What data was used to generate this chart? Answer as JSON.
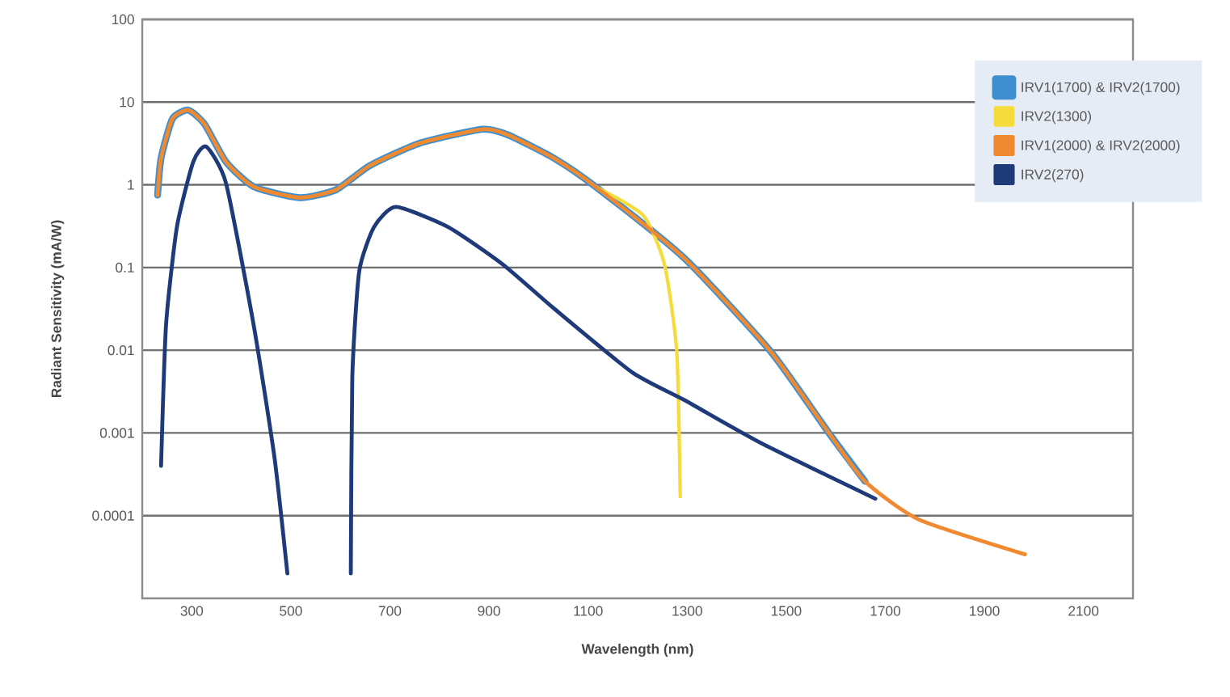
{
  "chart_data": {
    "type": "line",
    "xlabel": "Wavelength (nm)",
    "ylabel": "Radiant Sensitivity (mA/W)",
    "xlim": [
      200,
      2200
    ],
    "xticks": [
      300,
      500,
      700,
      900,
      1100,
      1300,
      1500,
      1700,
      1900,
      2100
    ],
    "ylim": [
      1e-05,
      100
    ],
    "yticks": [
      0.0001,
      0.001,
      0.01,
      0.1,
      1,
      10,
      100
    ],
    "log": "y",
    "grid": "y",
    "legend": "top right",
    "marker": "none",
    "line_style": "solid",
    "series": [
      {
        "name": "IRV1(1700) & IRV2(1700)",
        "color": "#3f8fd0",
        "x": [
          231,
          238,
          261,
          293,
          326,
          369,
          425,
          518,
          591,
          659,
          761,
          887,
          939,
          1031,
          1115,
          1294,
          1469,
          1586,
          1659
        ],
        "values": [
          0.75,
          2.1,
          6.3,
          8,
          5.4,
          1.9,
          0.95,
          0.7,
          0.87,
          1.7,
          3.2,
          4.7,
          4.0,
          2.1,
          0.95,
          0.13,
          0.0096,
          0.001,
          0.00026
        ]
      },
      {
        "name": "IRV2(1300)",
        "color": "#f5dc3c",
        "x": [
          1115,
          1211,
          1254,
          1279,
          1286
        ],
        "values": [
          0.95,
          0.43,
          0.11,
          0.0096,
          0.00017
        ]
      },
      {
        "name": "IRV1(2000) & IRV2(2000)",
        "color": "#f08a30",
        "x": [
          231,
          238,
          261,
          293,
          326,
          369,
          425,
          518,
          591,
          659,
          761,
          887,
          939,
          1031,
          1115,
          1294,
          1469,
          1586,
          1659,
          1767,
          1982
        ],
        "values": [
          0.75,
          2.1,
          6.3,
          8,
          5.4,
          1.9,
          0.95,
          0.7,
          0.87,
          1.7,
          3.2,
          4.7,
          4.0,
          2.1,
          0.95,
          0.13,
          0.0096,
          0.001,
          0.00026,
          9e-05,
          3.4e-05
        ]
      },
      {
        "name": "IRV2(270)",
        "color": "#1f3a78",
        "x": [
          238,
          248,
          270,
          303,
          329,
          369,
          425,
          467,
          493,
          560,
          621,
          624,
          638,
          668,
          712,
          817,
          927,
          1031,
          1189,
          1294,
          1448,
          1680
        ],
        "values": [
          0.0004,
          0.02,
          0.31,
          1.9,
          2.9,
          1.05,
          0.02,
          0.0005,
          2e-05,
          null,
          2e-05,
          0.0047,
          0.09,
          0.31,
          0.54,
          0.31,
          0.11,
          0.032,
          0.0054,
          0.0025,
          0.00076,
          0.00016
        ]
      }
    ]
  }
}
